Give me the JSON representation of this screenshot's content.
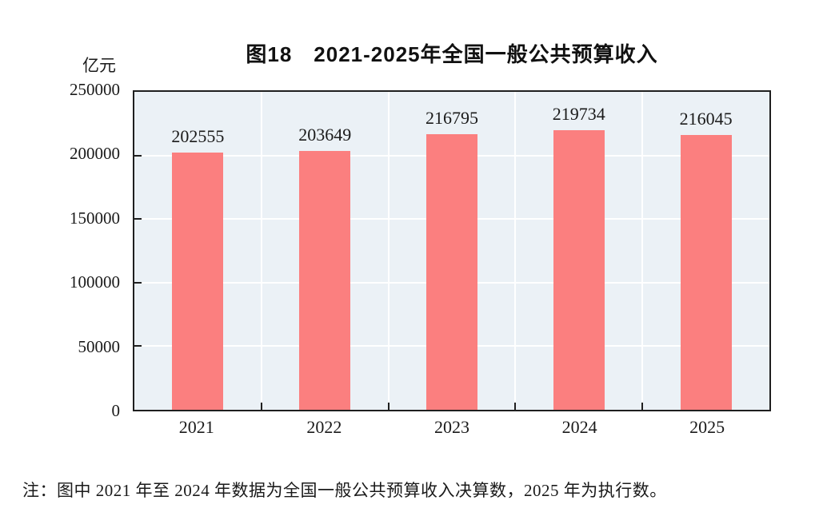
{
  "figure": {
    "title": "图18　2021-2025年全国一般公共预算收入",
    "unit_label": "亿元",
    "note": "注：图中 2021 年至 2024 年数据为全国一般公共预算收入决算数，2025 年为执行数。"
  },
  "chart_data": {
    "type": "bar",
    "title": "图18　2021-2025年全国一般公共预算收入",
    "xlabel": "",
    "ylabel": "亿元",
    "categories": [
      "2021",
      "2022",
      "2023",
      "2024",
      "2025"
    ],
    "values": [
      202555,
      203649,
      216795,
      219734,
      216045
    ],
    "ylim": [
      0,
      250000
    ],
    "yticks": [
      0,
      50000,
      100000,
      150000,
      200000,
      250000
    ],
    "grid": true,
    "legend": "none",
    "bar_color": "#FB7F7F",
    "plot_background": "#EBF1F6",
    "axis_color": "#1F1F1F",
    "gridline_color": "#FFFFFF",
    "note": "注：图中 2021 年至 2024 年数据为全国一般公共预算收入决算数，2025 年为执行数。"
  }
}
